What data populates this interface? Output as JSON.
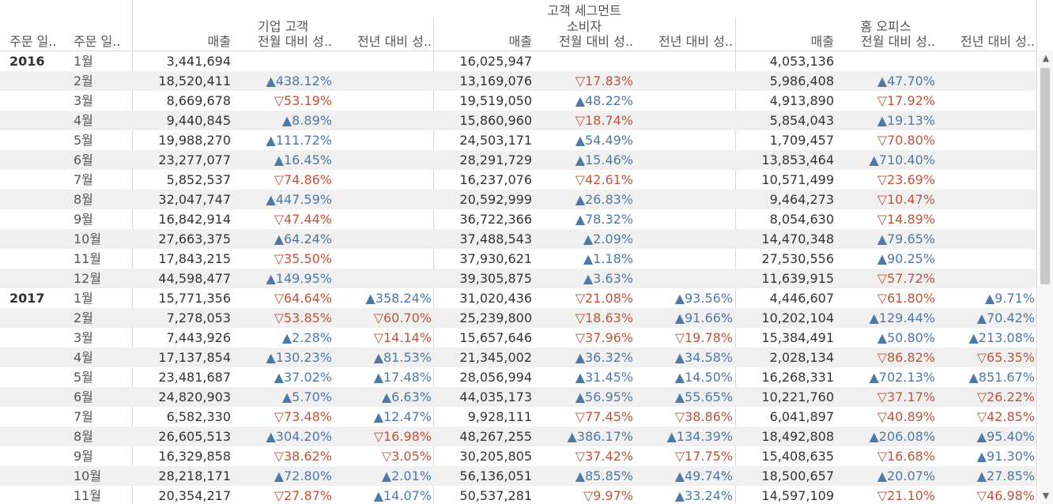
{
  "headers": {
    "group_title": "고객 세그먼트",
    "segments": [
      "기업 고객",
      "소비자",
      "홈 오피스"
    ],
    "row_dims": [
      "주문 일..",
      "주문 일.."
    ],
    "measures": [
      "매출",
      "전월 대비 성..",
      "전년 대비 성.."
    ]
  },
  "colors": {
    "positive": "#4e79a7",
    "negative": "#c0533b",
    "band": "#f0f0f0"
  },
  "icons": {
    "up": "filled-triangle-up-icon",
    "down": "outline-triangle-down-icon",
    "scroll_up": "scroll-up-arrow-icon",
    "scroll_down": "scroll-down-arrow-icon"
  },
  "rows": [
    {
      "year": "2016",
      "month": "1월",
      "cells": [
        [
          "3,441,694",
          "",
          ""
        ],
        [
          "16,025,947",
          "",
          ""
        ],
        [
          "4,053,136",
          "",
          ""
        ]
      ]
    },
    {
      "year": "",
      "month": "2월",
      "cells": [
        [
          "18,520,411",
          "▲438.12%",
          ""
        ],
        [
          "13,169,076",
          "▽17.83%",
          ""
        ],
        [
          "5,986,408",
          "▲47.70%",
          ""
        ]
      ]
    },
    {
      "year": "",
      "month": "3월",
      "cells": [
        [
          "8,669,678",
          "▽53.19%",
          ""
        ],
        [
          "19,519,050",
          "▲48.22%",
          ""
        ],
        [
          "4,913,890",
          "▽17.92%",
          ""
        ]
      ]
    },
    {
      "year": "",
      "month": "4월",
      "cells": [
        [
          "9,440,845",
          "▲8.89%",
          ""
        ],
        [
          "15,860,960",
          "▽18.74%",
          ""
        ],
        [
          "5,854,043",
          "▲19.13%",
          ""
        ]
      ]
    },
    {
      "year": "",
      "month": "5월",
      "cells": [
        [
          "19,988,270",
          "▲111.72%",
          ""
        ],
        [
          "24,503,171",
          "▲54.49%",
          ""
        ],
        [
          "1,709,457",
          "▽70.80%",
          ""
        ]
      ]
    },
    {
      "year": "",
      "month": "6월",
      "cells": [
        [
          "23,277,077",
          "▲16.45%",
          ""
        ],
        [
          "28,291,729",
          "▲15.46%",
          ""
        ],
        [
          "13,853,464",
          "▲710.40%",
          ""
        ]
      ]
    },
    {
      "year": "",
      "month": "7월",
      "cells": [
        [
          "5,852,537",
          "▽74.86%",
          ""
        ],
        [
          "16,237,076",
          "▽42.61%",
          ""
        ],
        [
          "10,571,499",
          "▽23.69%",
          ""
        ]
      ]
    },
    {
      "year": "",
      "month": "8월",
      "cells": [
        [
          "32,047,747",
          "▲447.59%",
          ""
        ],
        [
          "20,592,999",
          "▲26.83%",
          ""
        ],
        [
          "9,464,273",
          "▽10.47%",
          ""
        ]
      ]
    },
    {
      "year": "",
      "month": "9월",
      "cells": [
        [
          "16,842,914",
          "▽47.44%",
          ""
        ],
        [
          "36,722,366",
          "▲78.32%",
          ""
        ],
        [
          "8,054,630",
          "▽14.89%",
          ""
        ]
      ]
    },
    {
      "year": "",
      "month": "10월",
      "cells": [
        [
          "27,663,375",
          "▲64.24%",
          ""
        ],
        [
          "37,488,543",
          "▲2.09%",
          ""
        ],
        [
          "14,470,348",
          "▲79.65%",
          ""
        ]
      ]
    },
    {
      "year": "",
      "month": "11월",
      "cells": [
        [
          "17,843,215",
          "▽35.50%",
          ""
        ],
        [
          "37,930,621",
          "▲1.18%",
          ""
        ],
        [
          "27,530,556",
          "▲90.25%",
          ""
        ]
      ]
    },
    {
      "year": "",
      "month": "12월",
      "cells": [
        [
          "44,598,477",
          "▲149.95%",
          ""
        ],
        [
          "39,305,875",
          "▲3.63%",
          ""
        ],
        [
          "11,639,915",
          "▽57.72%",
          ""
        ]
      ]
    },
    {
      "year": "2017",
      "month": "1월",
      "cells": [
        [
          "15,771,356",
          "▽64.64%",
          "▲358.24%"
        ],
        [
          "31,020,436",
          "▽21.08%",
          "▲93.56%"
        ],
        [
          "4,446,607",
          "▽61.80%",
          "▲9.71%"
        ]
      ]
    },
    {
      "year": "",
      "month": "2월",
      "cells": [
        [
          "7,278,053",
          "▽53.85%",
          "▽60.70%"
        ],
        [
          "25,239,800",
          "▽18.63%",
          "▲91.66%"
        ],
        [
          "10,202,104",
          "▲129.44%",
          "▲70.42%"
        ]
      ]
    },
    {
      "year": "",
      "month": "3월",
      "cells": [
        [
          "7,443,926",
          "▲2.28%",
          "▽14.14%"
        ],
        [
          "15,657,646",
          "▽37.96%",
          "▽19.78%"
        ],
        [
          "15,384,491",
          "▲50.80%",
          "▲213.08%"
        ]
      ]
    },
    {
      "year": "",
      "month": "4월",
      "cells": [
        [
          "17,137,854",
          "▲130.23%",
          "▲81.53%"
        ],
        [
          "21,345,002",
          "▲36.32%",
          "▲34.58%"
        ],
        [
          "2,028,134",
          "▽86.82%",
          "▽65.35%"
        ]
      ]
    },
    {
      "year": "",
      "month": "5월",
      "cells": [
        [
          "23,481,687",
          "▲37.02%",
          "▲17.48%"
        ],
        [
          "28,056,994",
          "▲31.45%",
          "▲14.50%"
        ],
        [
          "16,268,331",
          "▲702.13%",
          "▲851.67%"
        ]
      ]
    },
    {
      "year": "",
      "month": "6월",
      "cells": [
        [
          "24,820,903",
          "▲5.70%",
          "▲6.63%"
        ],
        [
          "44,035,173",
          "▲56.95%",
          "▲55.65%"
        ],
        [
          "10,221,760",
          "▽37.17%",
          "▽26.22%"
        ]
      ]
    },
    {
      "year": "",
      "month": "7월",
      "cells": [
        [
          "6,582,330",
          "▽73.48%",
          "▲12.47%"
        ],
        [
          "9,928,111",
          "▽77.45%",
          "▽38.86%"
        ],
        [
          "6,041,897",
          "▽40.89%",
          "▽42.85%"
        ]
      ]
    },
    {
      "year": "",
      "month": "8월",
      "cells": [
        [
          "26,605,513",
          "▲304.20%",
          "▽16.98%"
        ],
        [
          "48,267,255",
          "▲386.17%",
          "▲134.39%"
        ],
        [
          "18,492,808",
          "▲206.08%",
          "▲95.40%"
        ]
      ]
    },
    {
      "year": "",
      "month": "9월",
      "cells": [
        [
          "16,329,858",
          "▽38.62%",
          "▽3.05%"
        ],
        [
          "30,205,805",
          "▽37.42%",
          "▽17.75%"
        ],
        [
          "15,408,635",
          "▽16.68%",
          "▲91.30%"
        ]
      ]
    },
    {
      "year": "",
      "month": "10월",
      "cells": [
        [
          "28,218,171",
          "▲72.80%",
          "▲2.01%"
        ],
        [
          "56,136,051",
          "▲85.85%",
          "▲49.74%"
        ],
        [
          "18,500,657",
          "▲20.07%",
          "▲27.85%"
        ]
      ]
    },
    {
      "year": "",
      "month": "11월",
      "cells": [
        [
          "20,354,217",
          "▽27.87%",
          "▲14.07%"
        ],
        [
          "50,537,281",
          "▽9.97%",
          "▲33.24%"
        ],
        [
          "14,597,109",
          "▽21.10%",
          "▽46.98%"
        ]
      ]
    }
  ]
}
